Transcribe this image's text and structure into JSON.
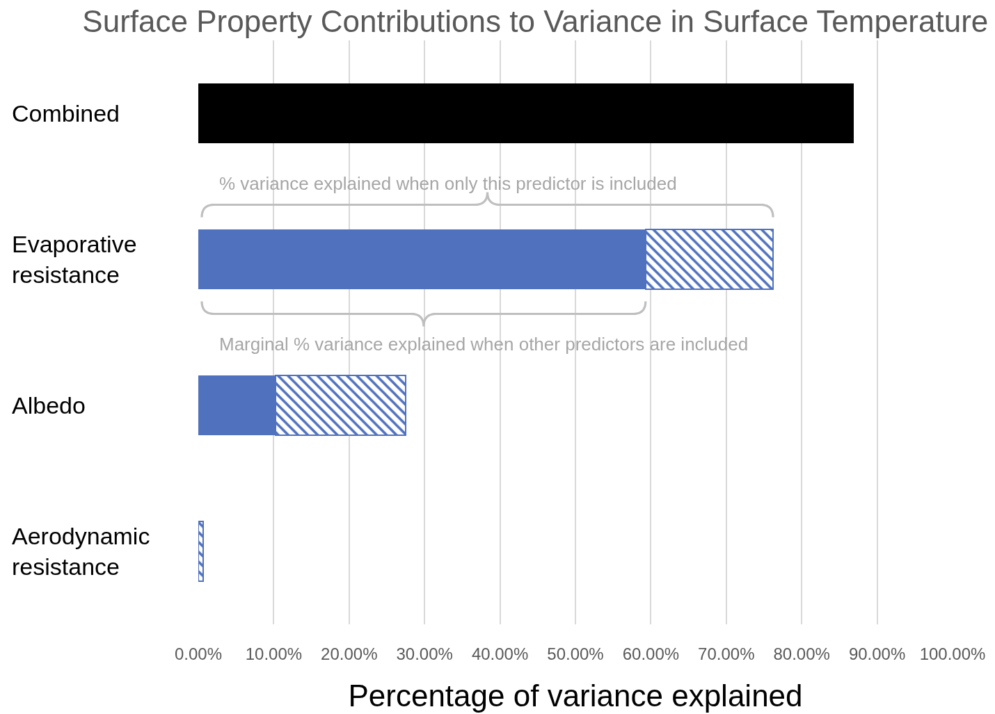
{
  "chart_data": {
    "type": "bar",
    "title": "Surface Property Contributions to Variance in Surface Temperature",
    "xlabel": "Percentage of variance explained",
    "categories": [
      "Combined",
      "Evaporative resistance",
      "Albedo",
      "Aerodynamic resistance"
    ],
    "orientation": "horizontal",
    "stacked": true,
    "series": [
      {
        "colors": [
          "#000000",
          "#4f71be",
          "#4f71be",
          "#4f71be"
        ],
        "values": [
          86.9,
          59.3,
          10.2,
          0
        ]
      },
      {
        "color": "#4f71be",
        "values": [
          null,
          16.9,
          17.3,
          0.6
        ]
      }
    ],
    "xlim": [
      0,
      100
    ],
    "xticks": [
      {
        "value": 0,
        "label": "0.00%"
      },
      {
        "value": 10,
        "label": "10.00%"
      },
      {
        "value": 20,
        "label": "20.00%"
      },
      {
        "value": 30,
        "label": "30.00%"
      },
      {
        "value": 40,
        "label": "40.00%"
      },
      {
        "value": 50,
        "label": "50.00%"
      },
      {
        "value": 60,
        "label": "60.00%"
      },
      {
        "value": 70,
        "label": "70.00%"
      },
      {
        "value": 80,
        "label": "80.00%"
      },
      {
        "value": 90,
        "label": "90.00%"
      },
      {
        "value": 100,
        "label": "100.00%"
      }
    ],
    "grid": "x",
    "annotations": [
      "% variance explained when only this predictor is included",
      "Marginal % variance explained when other predictors are included"
    ]
  }
}
